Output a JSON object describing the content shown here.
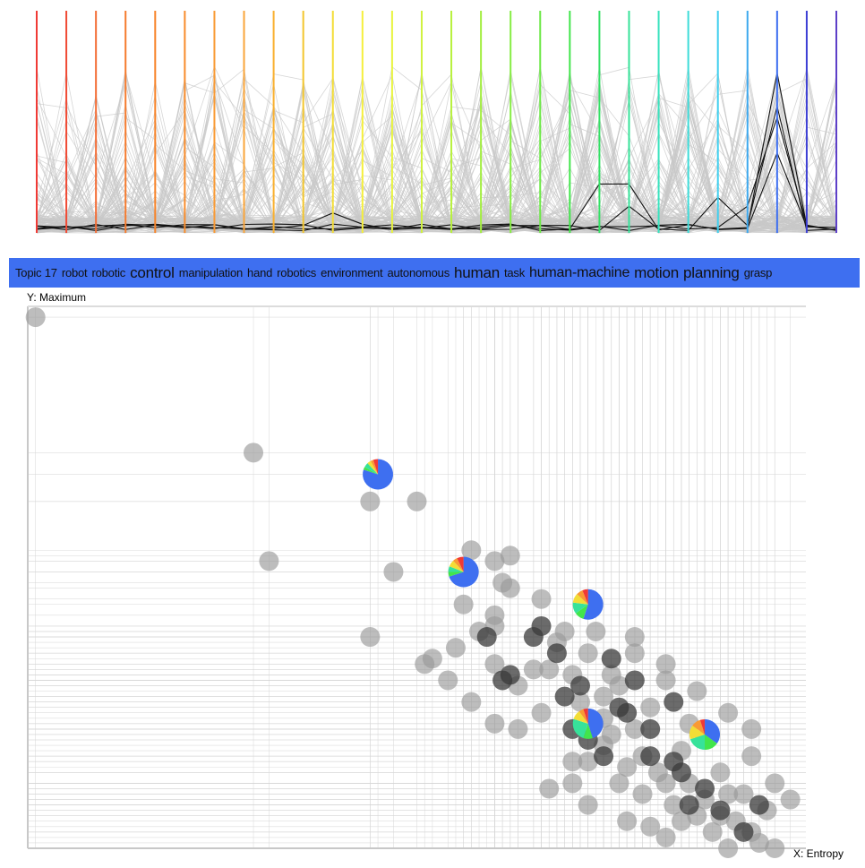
{
  "topic_bar": {
    "color": "#3e6ff0",
    "words": [
      {
        "text": "Topic 17",
        "size": 13
      },
      {
        "text": "robot",
        "size": 13
      },
      {
        "text": "robotic",
        "size": 13
      },
      {
        "text": "control",
        "size": 17
      },
      {
        "text": "manipulation",
        "size": 13
      },
      {
        "text": "hand",
        "size": 13
      },
      {
        "text": "robotics",
        "size": 13
      },
      {
        "text": "environment",
        "size": 13
      },
      {
        "text": "autonomous",
        "size": 13
      },
      {
        "text": "human",
        "size": 17
      },
      {
        "text": "task",
        "size": 13
      },
      {
        "text": "human-machine",
        "size": 16
      },
      {
        "text": "motion",
        "size": 17
      },
      {
        "text": "planning",
        "size": 17
      },
      {
        "text": "grasp",
        "size": 13
      }
    ]
  },
  "scatter": {
    "y_label": "Y: Maximum",
    "x_label": "X: Entropy"
  },
  "parallel_coords": {
    "axis_colors": [
      "#f03a35",
      "#f04a34",
      "#f36c35",
      "#f57b2e",
      "#f7842a",
      "#f88c2b",
      "#f99a34",
      "#faa53a",
      "#f9b02f",
      "#f3c62e",
      "#f3dd36",
      "#f5ef3c",
      "#e8f43e",
      "#d0f23f",
      "#b8f13e",
      "#a3ee40",
      "#86ed43",
      "#6de847",
      "#42e54b",
      "#35e066",
      "#37e29a",
      "#38e2be",
      "#3ddcd9",
      "#40cfee",
      "#3da8ee",
      "#3e6ff0",
      "#3d3fd4",
      "#5d3fc8"
    ],
    "highlight_axis": 25,
    "legend": "none"
  },
  "chart_data": {
    "type": "scatter",
    "title": "",
    "xlabel": "X: Entropy",
    "ylabel": "Y: Maximum",
    "xlim": [
      0,
      1
    ],
    "ylim": [
      0,
      1
    ],
    "grid": true,
    "points_gray": [
      [
        0.01,
        0.98
      ],
      [
        0.29,
        0.73
      ],
      [
        0.44,
        0.64
      ],
      [
        0.5,
        0.64
      ],
      [
        0.31,
        0.53
      ],
      [
        0.47,
        0.51
      ],
      [
        0.57,
        0.55
      ],
      [
        0.62,
        0.54
      ],
      [
        0.6,
        0.53
      ],
      [
        0.61,
        0.49
      ],
      [
        0.56,
        0.45
      ],
      [
        0.58,
        0.4
      ],
      [
        0.62,
        0.48
      ],
      [
        0.6,
        0.43
      ],
      [
        0.44,
        0.39
      ],
      [
        0.55,
        0.37
      ],
      [
        0.51,
        0.34
      ],
      [
        0.6,
        0.34
      ],
      [
        0.63,
        0.3
      ],
      [
        0.66,
        0.46
      ],
      [
        0.69,
        0.4
      ],
      [
        0.72,
        0.36
      ],
      [
        0.75,
        0.32
      ],
      [
        0.67,
        0.33
      ],
      [
        0.7,
        0.32
      ],
      [
        0.74,
        0.28
      ],
      [
        0.57,
        0.27
      ],
      [
        0.6,
        0.23
      ],
      [
        0.68,
        0.38
      ],
      [
        0.73,
        0.4
      ],
      [
        0.78,
        0.39
      ],
      [
        0.78,
        0.36
      ],
      [
        0.82,
        0.34
      ],
      [
        0.82,
        0.31
      ],
      [
        0.76,
        0.3
      ],
      [
        0.8,
        0.26
      ],
      [
        0.85,
        0.23
      ],
      [
        0.87,
        0.2
      ],
      [
        0.84,
        0.18
      ],
      [
        0.81,
        0.14
      ],
      [
        0.72,
        0.16
      ],
      [
        0.76,
        0.12
      ],
      [
        0.79,
        0.1
      ],
      [
        0.83,
        0.08
      ],
      [
        0.87,
        0.09
      ],
      [
        0.9,
        0.1
      ],
      [
        0.91,
        0.05
      ],
      [
        0.93,
        0.03
      ],
      [
        0.94,
        0.01
      ],
      [
        0.96,
        0.0
      ],
      [
        0.95,
        0.07
      ],
      [
        0.89,
        0.14
      ],
      [
        0.93,
        0.17
      ],
      [
        0.96,
        0.12
      ],
      [
        0.98,
        0.09
      ],
      [
        0.93,
        0.22
      ],
      [
        0.9,
        0.25
      ],
      [
        0.86,
        0.29
      ],
      [
        0.75,
        0.21
      ],
      [
        0.7,
        0.16
      ],
      [
        0.67,
        0.11
      ],
      [
        0.72,
        0.08
      ],
      [
        0.77,
        0.05
      ],
      [
        0.8,
        0.04
      ],
      [
        0.82,
        0.02
      ],
      [
        0.86,
        0.06
      ],
      [
        0.89,
        0.06
      ],
      [
        0.74,
        0.24
      ],
      [
        0.78,
        0.22
      ],
      [
        0.71,
        0.27
      ],
      [
        0.65,
        0.33
      ],
      [
        0.66,
        0.25
      ],
      [
        0.7,
        0.12
      ],
      [
        0.82,
        0.12
      ],
      [
        0.85,
        0.12
      ],
      [
        0.88,
        0.03
      ],
      [
        0.9,
        0.0
      ],
      [
        0.92,
        0.1
      ],
      [
        0.84,
        0.05
      ],
      [
        0.79,
        0.17
      ],
      [
        0.77,
        0.15
      ],
      [
        0.74,
        0.19
      ],
      [
        0.63,
        0.22
      ],
      [
        0.6,
        0.41
      ],
      [
        0.52,
        0.35
      ],
      [
        0.54,
        0.31
      ]
    ],
    "points_dark": [
      [
        0.59,
        0.39
      ],
      [
        0.62,
        0.32
      ],
      [
        0.65,
        0.39
      ],
      [
        0.69,
        0.28
      ],
      [
        0.72,
        0.2
      ],
      [
        0.75,
        0.35
      ],
      [
        0.78,
        0.31
      ],
      [
        0.76,
        0.26
      ],
      [
        0.8,
        0.22
      ],
      [
        0.83,
        0.27
      ],
      [
        0.8,
        0.17
      ],
      [
        0.84,
        0.14
      ],
      [
        0.87,
        0.11
      ],
      [
        0.89,
        0.07
      ],
      [
        0.92,
        0.03
      ],
      [
        0.94,
        0.08
      ],
      [
        0.85,
        0.08
      ],
      [
        0.83,
        0.16
      ],
      [
        0.77,
        0.25
      ],
      [
        0.74,
        0.17
      ],
      [
        0.68,
        0.36
      ],
      [
        0.71,
        0.3
      ],
      [
        0.61,
        0.31
      ],
      [
        0.66,
        0.41
      ],
      [
        0.7,
        0.22
      ]
    ],
    "pies": [
      {
        "x": 0.45,
        "y": 0.69,
        "slices": [
          0.8,
          0.03,
          0.05,
          0.04,
          0.03,
          0.05
        ]
      },
      {
        "x": 0.56,
        "y": 0.51,
        "slices": [
          0.7,
          0.05,
          0.06,
          0.07,
          0.05,
          0.07
        ]
      },
      {
        "x": 0.72,
        "y": 0.45,
        "slices": [
          0.55,
          0.1,
          0.12,
          0.1,
          0.07,
          0.06
        ]
      },
      {
        "x": 0.72,
        "y": 0.23,
        "slices": [
          0.45,
          0.1,
          0.25,
          0.1,
          0.05,
          0.05
        ]
      },
      {
        "x": 0.87,
        "y": 0.21,
        "slices": [
          0.35,
          0.15,
          0.2,
          0.15,
          0.1,
          0.05
        ]
      }
    ],
    "pie_colors": [
      "#3e6ff0",
      "#42e54b",
      "#37e29a",
      "#f3dd36",
      "#f99a34",
      "#f03a35"
    ]
  }
}
